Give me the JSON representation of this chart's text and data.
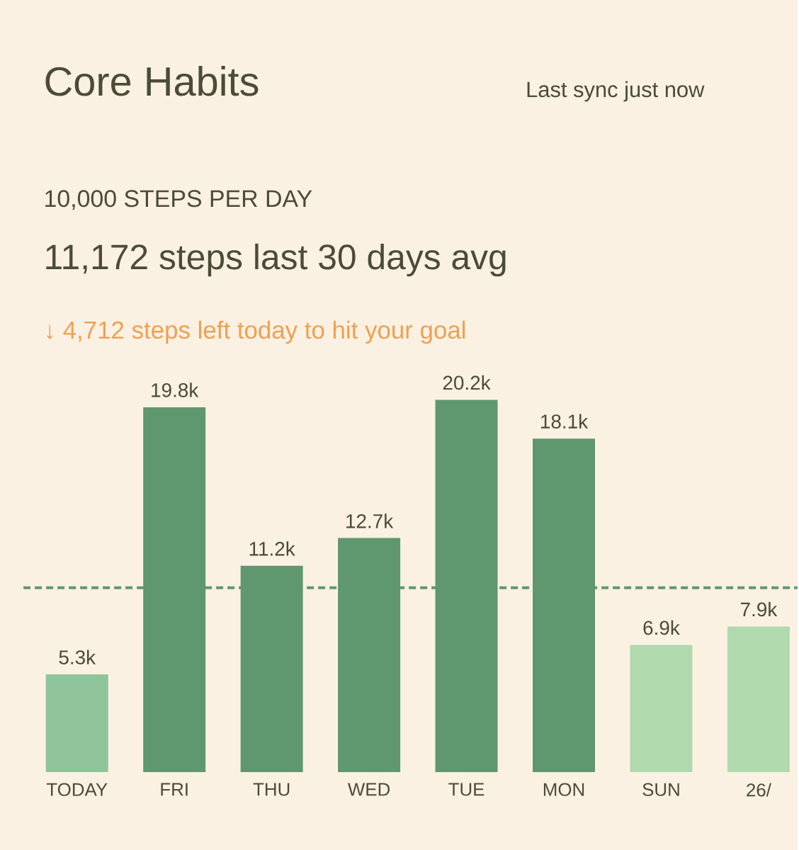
{
  "chart_data": {
    "type": "bar",
    "title": "Core Habits",
    "subtitle": "10,000 STEPS PER DAY",
    "annotations": [
      "Last sync just now",
      "11,172 steps last 30 days avg",
      "↓ 4,712 steps left today to hit your goal"
    ],
    "categories": [
      "TODAY",
      "FRI",
      "THU",
      "WED",
      "TUE",
      "MON",
      "SUN",
      "26/"
    ],
    "values": [
      5.3,
      19.8,
      11.2,
      12.7,
      20.2,
      18.1,
      6.9,
      7.9
    ],
    "value_labels": [
      "5.3k",
      "19.8k",
      "11.2k",
      "12.7k",
      "20.2k",
      "18.1k",
      "6.9k",
      "7.9k"
    ],
    "colors": [
      "#8fc49b",
      "#5f976f",
      "#5f976f",
      "#5f976f",
      "#5f976f",
      "#5f976f",
      "#b0d9ad",
      "#b0d9ad"
    ],
    "ref_lines": [
      {
        "axis": "y",
        "value": 10,
        "color": "#5f976f",
        "line_style": "dashed"
      }
    ]
  }
}
